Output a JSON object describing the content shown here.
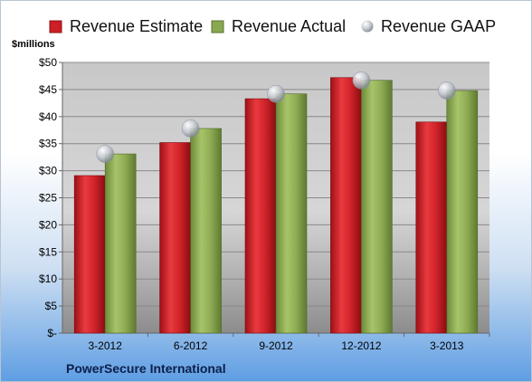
{
  "chart_data": {
    "type": "bar",
    "title": "",
    "ylabel": "$millions",
    "xlabel": "",
    "categories": [
      "3-2012",
      "6-2012",
      "9-2012",
      "12-2012",
      "3-2013"
    ],
    "series": [
      {
        "name": "Revenue Estimate",
        "kind": "bar",
        "color": "#cc1f26",
        "values": [
          29.1,
          35.2,
          43.3,
          47.2,
          39.0
        ]
      },
      {
        "name": "Revenue Actual",
        "kind": "bar",
        "color": "#8aa84f",
        "values": [
          33.1,
          37.8,
          44.2,
          46.7,
          44.8
        ]
      },
      {
        "name": "Revenue GAAP",
        "kind": "marker",
        "color": "#c9ced6",
        "values": [
          33.1,
          37.8,
          44.2,
          46.7,
          44.8
        ]
      }
    ],
    "ylim": [
      0,
      50
    ],
    "yticks": [
      0,
      5,
      10,
      15,
      20,
      25,
      30,
      35,
      40,
      45,
      50
    ],
    "ytick_labels": [
      "$-",
      "$5",
      "$10",
      "$15",
      "$20",
      "$25",
      "$30",
      "$35",
      "$40",
      "$45",
      "$50"
    ],
    "grid": true,
    "legend_position": "top"
  },
  "footer": {
    "company": "PowerSecure International"
  }
}
